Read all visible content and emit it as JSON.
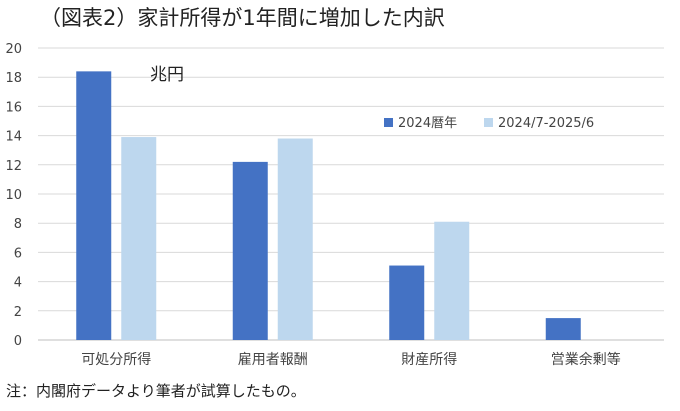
{
  "header": {
    "title": "（図表2）家計所得が1年間に増加した内訳"
  },
  "footer": {
    "note": "注：内閣府データより筆者が試算したもの。"
  },
  "chart_data": {
    "type": "bar",
    "title": "（図表2）家計所得が1年間に増加した内訳",
    "unit_label": "兆円",
    "categories": [
      "可処分所得",
      "雇用者報酬",
      "財産所得",
      "営業余剰等"
    ],
    "series": [
      {
        "name": "2024暦年",
        "values": [
          18.4,
          12.2,
          5.1,
          1.5
        ],
        "color": "#4472C4"
      },
      {
        "name": "2024/7-2025/6",
        "values": [
          13.9,
          13.8,
          8.1,
          0
        ],
        "color": "#BDD7EE"
      }
    ],
    "yticks": [
      "0",
      "2",
      "4",
      "6",
      "8",
      "10",
      "12",
      "14",
      "16",
      "18",
      "20"
    ],
    "ylim": [
      0,
      20
    ],
    "grid": true,
    "legend_position": "right"
  }
}
